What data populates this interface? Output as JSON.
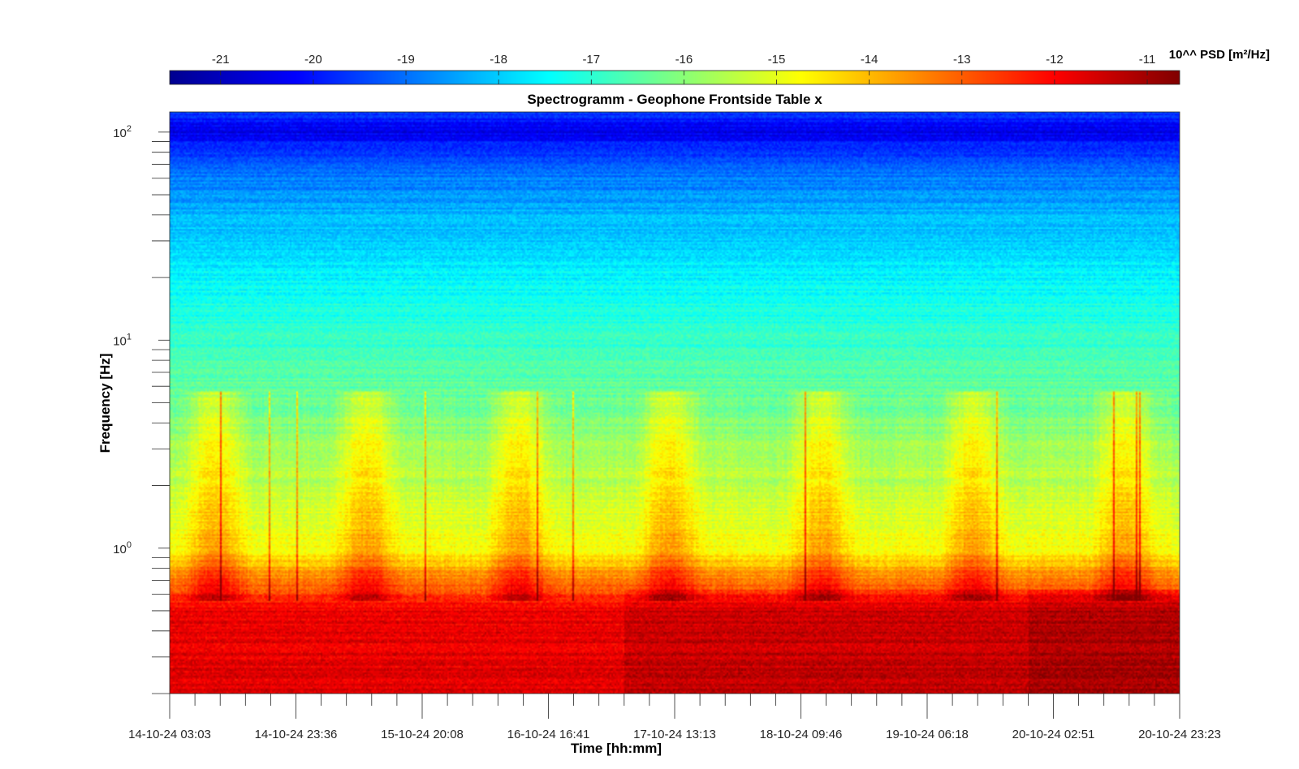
{
  "chart_data": {
    "type": "heatmap",
    "title": "Spectrogramm - Geophone Frontside Table x",
    "xlabel": "Time [hh:mm]",
    "ylabel": "Frequency [Hz]",
    "colorbar_label": "10^^ PSD [m²/Hz]",
    "colormap": "jet",
    "y_scale": "log",
    "ylim": [
      0.2,
      125
    ],
    "x_tick_labels": [
      "14-10-24 03:03",
      "14-10-24 23:36",
      "15-10-24 20:08",
      "16-10-24 16:41",
      "17-10-24 13:13",
      "18-10-24 09:46",
      "19-10-24 06:18",
      "20-10-24 02:51",
      "20-10-24 23:23"
    ],
    "y_ticks": [
      {
        "base": "10",
        "exp": "2",
        "value": 100
      },
      {
        "base": "10",
        "exp": "1",
        "value": 10
      },
      {
        "base": "10",
        "exp": "0",
        "value": 1
      }
    ],
    "colorbar_ticks": [
      "-21",
      "-20",
      "-19",
      "-18",
      "-17",
      "-16",
      "-15",
      "-14",
      "-13",
      "-12",
      "-11"
    ],
    "colorbar_range": [
      -21.55,
      -10.65
    ],
    "log_psd_profile": [
      {
        "freq": 0.2,
        "value": -11.7
      },
      {
        "freq": 0.5,
        "value": -11.8
      },
      {
        "freq": 0.75,
        "value": -13.6
      },
      {
        "freq": 1.0,
        "value": -14.8
      },
      {
        "freq": 2.0,
        "value": -15.4
      },
      {
        "freq": 5.0,
        "value": -16.3
      },
      {
        "freq": 10.0,
        "value": -16.9
      },
      {
        "freq": 20.0,
        "value": -17.5
      },
      {
        "freq": 40.0,
        "value": -18.3
      },
      {
        "freq": 70.0,
        "value": -19.1
      },
      {
        "freq": 100.0,
        "value": -20.4
      },
      {
        "freq": 125.0,
        "value": -19.6
      }
    ]
  }
}
